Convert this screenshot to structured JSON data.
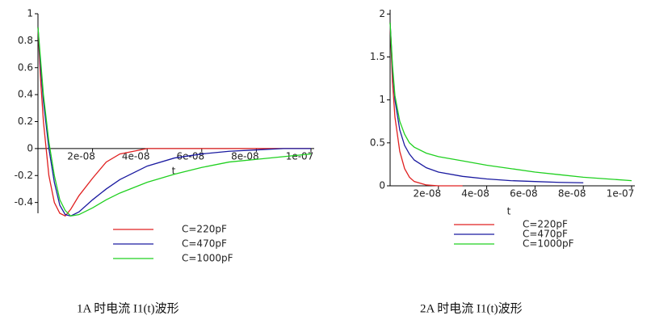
{
  "chart_data": [
    {
      "type": "line",
      "x_label": "t",
      "caption": "1A 时电流 I1(t)波形",
      "x": [
        0,
        1e-09,
        2e-09,
        4e-09,
        6e-09,
        8e-09,
        1e-08,
        1.2e-08,
        1.5e-08,
        2e-08,
        2.5e-08,
        3e-08,
        4e-08,
        5e-08,
        6e-08,
        7e-08,
        8e-08,
        9e-08,
        1e-07
      ],
      "series": [
        {
          "name": "C=220pF",
          "color": "#e02020",
          "values": [
            0.9,
            0.5,
            0.2,
            -0.2,
            -0.4,
            -0.48,
            -0.5,
            -0.45,
            -0.35,
            -0.22,
            -0.1,
            -0.04,
            0,
            0,
            0,
            0,
            0,
            0,
            0
          ]
        },
        {
          "name": "C=470pF",
          "color": "#1a1aa0",
          "values": [
            0.9,
            0.6,
            0.35,
            0,
            -0.25,
            -0.42,
            -0.49,
            -0.5,
            -0.47,
            -0.38,
            -0.3,
            -0.23,
            -0.13,
            -0.07,
            -0.04,
            -0.02,
            -0.01,
            0,
            0
          ]
        },
        {
          "name": "C=1000pF",
          "color": "#20d020",
          "values": [
            0.9,
            0.65,
            0.4,
            0.05,
            -0.2,
            -0.38,
            -0.46,
            -0.5,
            -0.49,
            -0.44,
            -0.38,
            -0.33,
            -0.25,
            -0.19,
            -0.14,
            -0.1,
            -0.08,
            -0.06,
            -0.04
          ]
        }
      ],
      "xlim": [
        0,
        1e-07
      ],
      "xticks": [
        {
          "value": 2e-08,
          "label": "2e-08"
        },
        {
          "value": 4e-08,
          "label": "4e-08"
        },
        {
          "value": 6e-08,
          "label": "6e-08"
        },
        {
          "value": 8e-08,
          "label": "8e-08"
        },
        {
          "value": 1e-07,
          "label": "1e-07"
        }
      ],
      "ylim": [
        -0.48,
        1
      ],
      "yticks": [
        1,
        0.8,
        0.6,
        0.4,
        0.2,
        0,
        -0.2,
        -0.4
      ]
    },
    {
      "type": "line",
      "x_label": "t",
      "caption": "2A 时电流 I1(t)波形",
      "x": [
        0,
        1e-09,
        2e-09,
        4e-09,
        6e-09,
        8e-09,
        1e-08,
        1.5e-08,
        2e-08,
        3e-08,
        4e-08,
        5e-08,
        6e-08,
        7e-08,
        8e-08,
        9e-08,
        1e-07
      ],
      "series": [
        {
          "name": "C=220pF",
          "color": "#e02020",
          "values": [
            1.9,
            1.2,
            0.8,
            0.4,
            0.2,
            0.1,
            0.05,
            0.01,
            0,
            0,
            null,
            null,
            null,
            null,
            null,
            null,
            null
          ]
        },
        {
          "name": "C=470pF",
          "color": "#1a1aa0",
          "values": [
            1.9,
            1.35,
            1.0,
            0.65,
            0.47,
            0.37,
            0.3,
            0.21,
            0.16,
            0.11,
            0.08,
            0.06,
            0.05,
            0.04,
            0.035,
            null,
            null
          ]
        },
        {
          "name": "C=1000pF",
          "color": "#20d020",
          "values": [
            1.9,
            1.4,
            1.05,
            0.75,
            0.6,
            0.5,
            0.45,
            0.38,
            0.34,
            0.29,
            0.24,
            0.2,
            0.16,
            0.13,
            0.1,
            0.08,
            0.06
          ]
        }
      ],
      "xlim": [
        0,
        1e-07
      ],
      "xticks": [
        {
          "value": 2e-08,
          "label": "2e-08"
        },
        {
          "value": 4e-08,
          "label": "4e-08"
        },
        {
          "value": 6e-08,
          "label": "6e-08"
        },
        {
          "value": 8e-08,
          "label": "8e-08"
        },
        {
          "value": 1e-07,
          "label": "1e-07"
        }
      ],
      "ylim": [
        0,
        2.05
      ],
      "yticks": [
        0,
        0.5,
        1,
        1.5,
        2
      ]
    }
  ]
}
